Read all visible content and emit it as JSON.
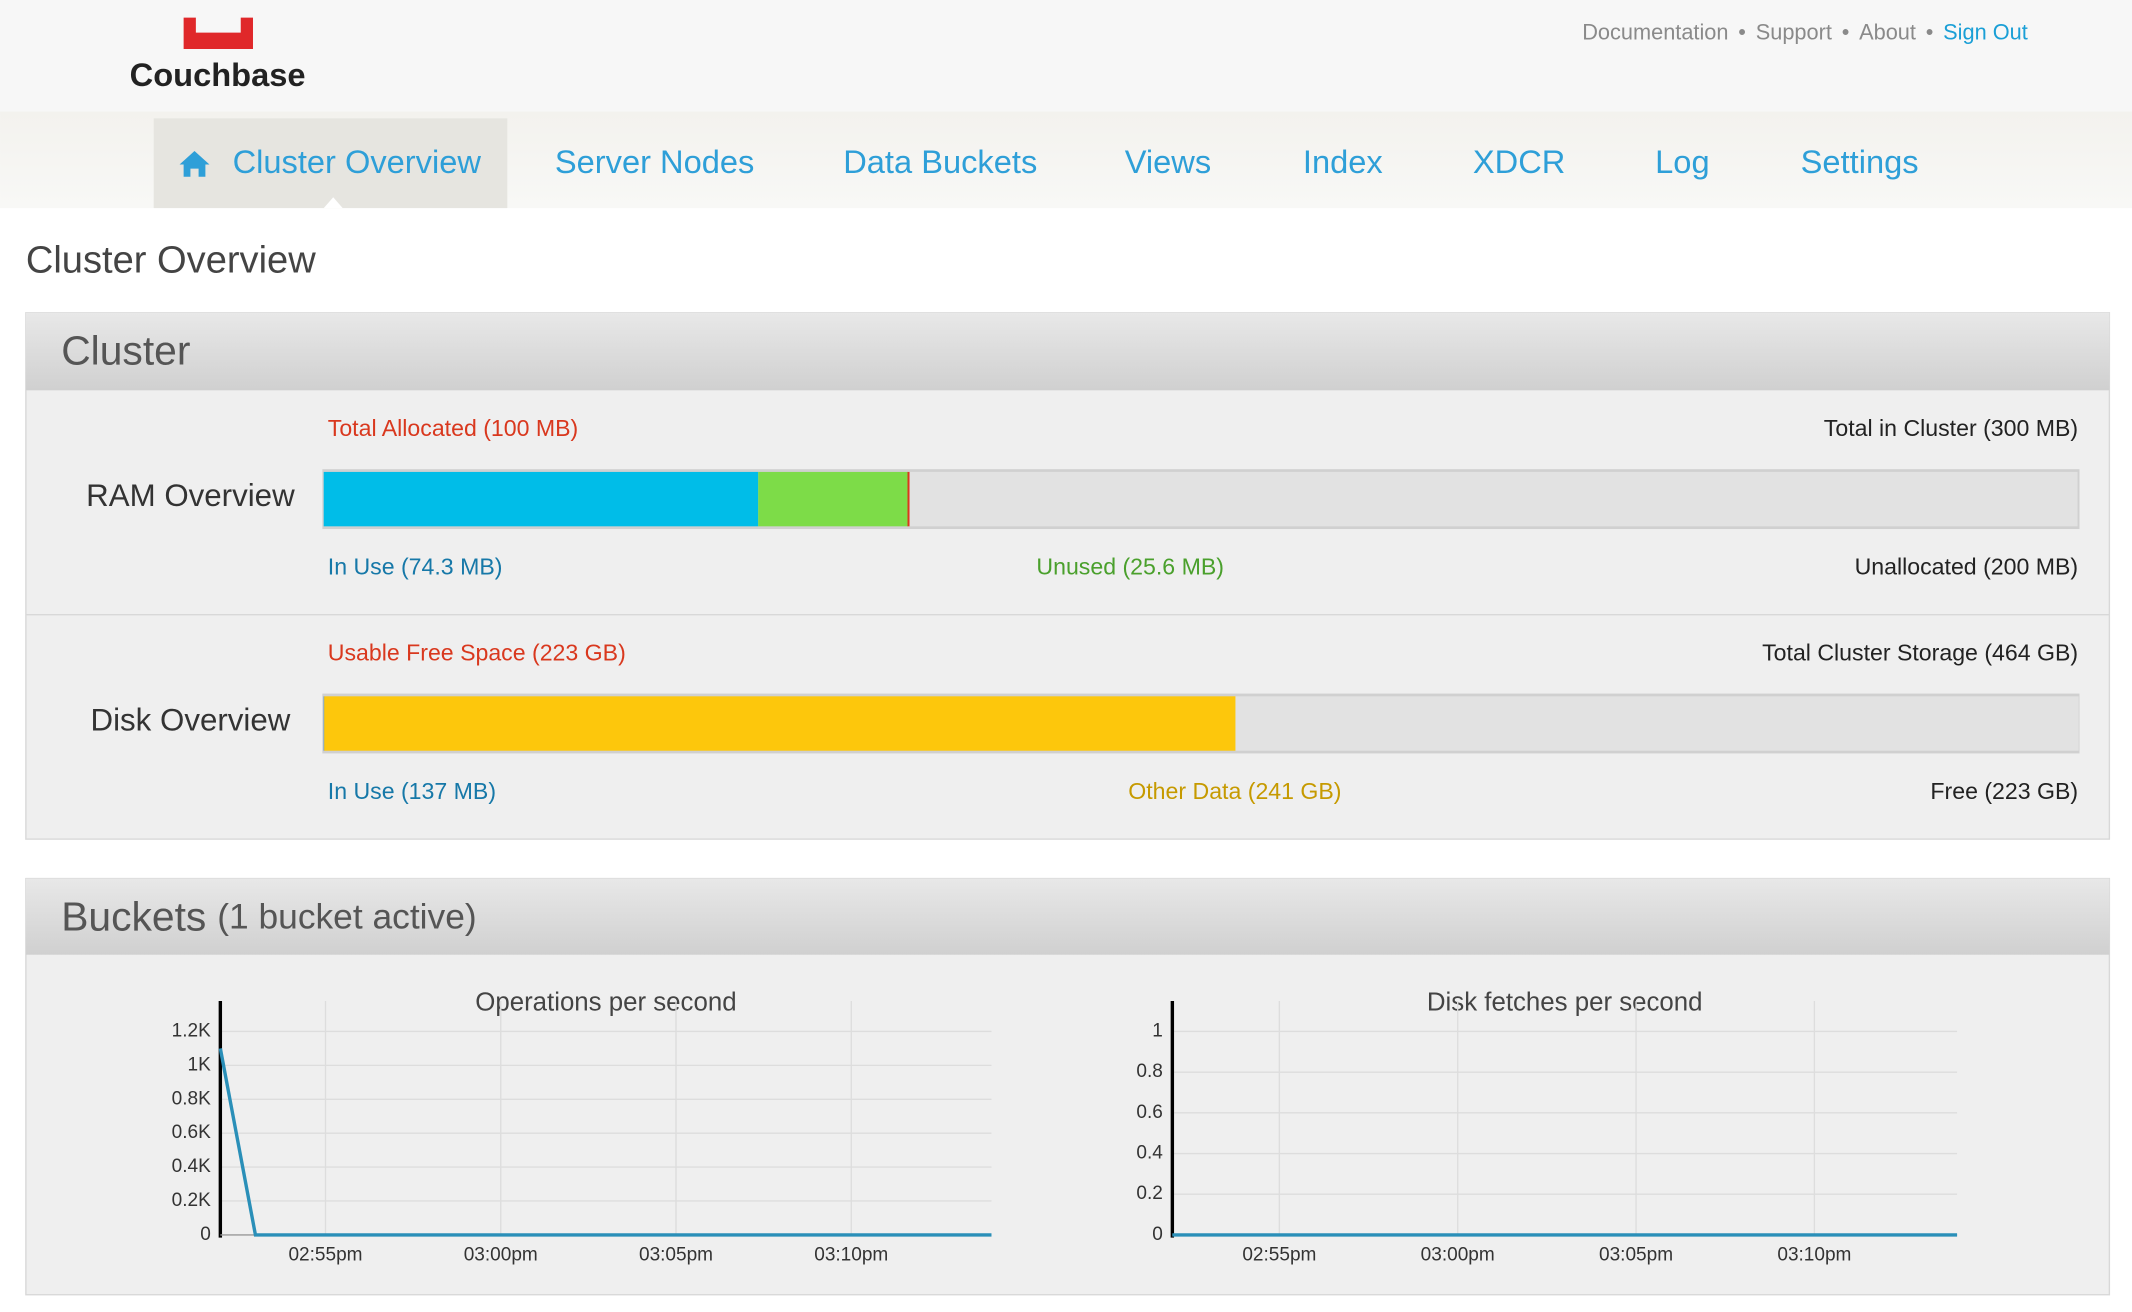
{
  "header": {
    "logo": "Couchbase",
    "links": [
      "Documentation",
      "Support",
      "About",
      "Sign Out"
    ]
  },
  "nav": {
    "items": [
      "Cluster Overview",
      "Server Nodes",
      "Data Buckets",
      "Views",
      "Index",
      "XDCR",
      "Log",
      "Settings"
    ],
    "active": 0
  },
  "page_title": "Cluster Overview",
  "cluster": {
    "title": "Cluster",
    "ram": {
      "label": "RAM Overview",
      "top_left": "Total Allocated (100 MB)",
      "top_right": "Total in Cluster (300 MB)",
      "allocated": 100,
      "total": 300,
      "segments": [
        {
          "label": "In Use (74.3 MB)",
          "value": 74.3,
          "color": "#00bde8"
        },
        {
          "label": "Unused (25.6 MB)",
          "value": 25.6,
          "color": "#7ddc48"
        },
        {
          "label": "Unallocated (200 MB)",
          "value": 200,
          "color": "#e2e2e2"
        }
      ]
    },
    "disk": {
      "label": "Disk Overview",
      "top_left": "Usable Free Space (223 GB)",
      "top_right": "Total Cluster Storage (464 GB)",
      "total": 464,
      "segments": [
        {
          "label": "In Use (137 MB)",
          "value": 0.137,
          "color": "#1a6fb0"
        },
        {
          "label": "Other Data (241 GB)",
          "value": 241,
          "color": "#fdc70c"
        },
        {
          "label": "Free (223 GB)",
          "value": 223,
          "color": "#e2e2e2"
        }
      ]
    }
  },
  "buckets": {
    "title": "Buckets",
    "subtitle": "(1 bucket active)",
    "charts": [
      {
        "type": "line",
        "title": "Operations per second",
        "color": "#2a8fb8",
        "x": [
          "02:52pm",
          "02:53pm",
          "02:54pm",
          "02:55pm",
          "02:56pm",
          "02:57pm",
          "02:58pm",
          "02:59pm",
          "03:00pm",
          "03:01pm",
          "03:02pm",
          "03:03pm",
          "03:04pm",
          "03:05pm",
          "03:06pm",
          "03:07pm",
          "03:08pm",
          "03:09pm",
          "03:10pm",
          "03:11pm",
          "03:12pm",
          "03:13pm",
          "03:14pm"
        ],
        "values": [
          1100,
          0,
          0,
          0,
          0,
          0,
          0,
          0,
          0,
          0,
          0,
          0,
          0,
          0,
          0,
          0,
          0,
          0,
          0,
          0,
          0,
          0,
          0
        ],
        "xlim": [
          "02:52pm",
          "03:14pm"
        ],
        "xticks": [
          "02:55pm",
          "03:00pm",
          "03:05pm",
          "03:10pm"
        ],
        "ylim": [
          0,
          1380
        ],
        "yticks": [
          0,
          {
            "value": 200,
            "label": "0.2K"
          },
          {
            "value": 400,
            "label": "0.4K"
          },
          {
            "value": 600,
            "label": "0.6K"
          },
          {
            "value": 800,
            "label": "0.8K"
          },
          {
            "value": 1000,
            "label": "1K"
          },
          {
            "value": 1200,
            "label": "1.2K"
          }
        ],
        "grid": true
      },
      {
        "type": "line",
        "title": "Disk fetches per second",
        "color": "#2a8fb8",
        "x": [
          "02:52pm",
          "02:53pm",
          "02:54pm",
          "02:55pm",
          "02:56pm",
          "02:57pm",
          "02:58pm",
          "02:59pm",
          "03:00pm",
          "03:01pm",
          "03:02pm",
          "03:03pm",
          "03:04pm",
          "03:05pm",
          "03:06pm",
          "03:07pm",
          "03:08pm",
          "03:09pm",
          "03:10pm",
          "03:11pm",
          "03:12pm",
          "03:13pm",
          "03:14pm"
        ],
        "values": [
          0,
          0,
          0,
          0,
          0,
          0,
          0,
          0,
          0,
          0,
          0,
          0,
          0,
          0,
          0,
          0,
          0,
          0,
          0,
          0,
          0,
          0,
          0
        ],
        "xlim": [
          "02:52pm",
          "03:14pm"
        ],
        "xticks": [
          "02:55pm",
          "03:00pm",
          "03:05pm",
          "03:10pm"
        ],
        "ylim": [
          0,
          1.15
        ],
        "yticks": [
          0,
          0.2,
          0.4,
          0.6,
          0.8,
          1
        ],
        "grid": true
      }
    ]
  }
}
